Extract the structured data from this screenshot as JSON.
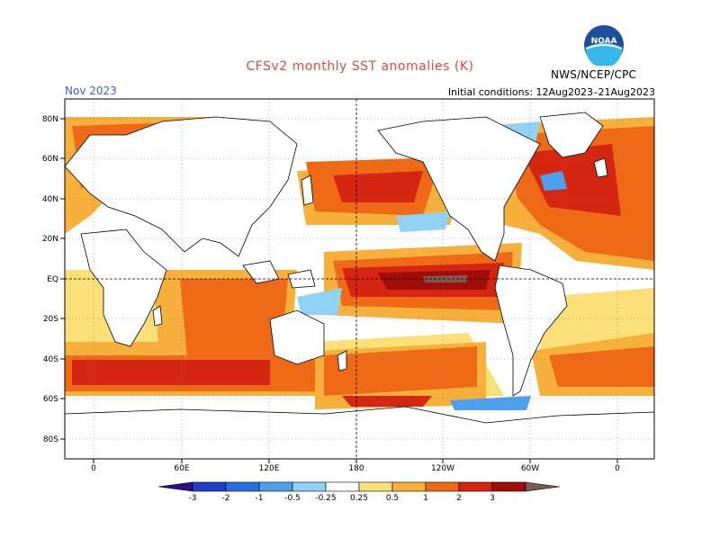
{
  "header": {
    "title": "CFSv2 monthly SST anomalies (K)",
    "month": "Nov 2023",
    "initial_conditions": "Initial conditions: 12Aug2023–21Aug2023",
    "agency": "NWS/NCEP/CPC",
    "logo_text": "NOAA"
  },
  "map": {
    "lat_labels": [
      "80N",
      "60N",
      "40N",
      "20N",
      "EQ",
      "20S",
      "40S",
      "60S",
      "80S"
    ],
    "lon_labels": [
      "0",
      "60E",
      "120E",
      "180",
      "120W",
      "60W",
      "0"
    ],
    "field": "SST anomaly",
    "unit": "K",
    "projection": "cylindrical equidistant"
  },
  "colorbar": {
    "levels": [
      "-3",
      "-2",
      "-1",
      "-0.5",
      "-0.25",
      "0.25",
      "0.5",
      "1",
      "2",
      "3"
    ],
    "colors": [
      "#2a0f8a",
      "#1f3fc8",
      "#2a6fe0",
      "#4da0ee",
      "#8fd2f4",
      "#ffffff",
      "#fbe07a",
      "#f7b03c",
      "#ef6a16",
      "#d52612",
      "#a10e0a",
      "#7a5a52"
    ]
  }
}
